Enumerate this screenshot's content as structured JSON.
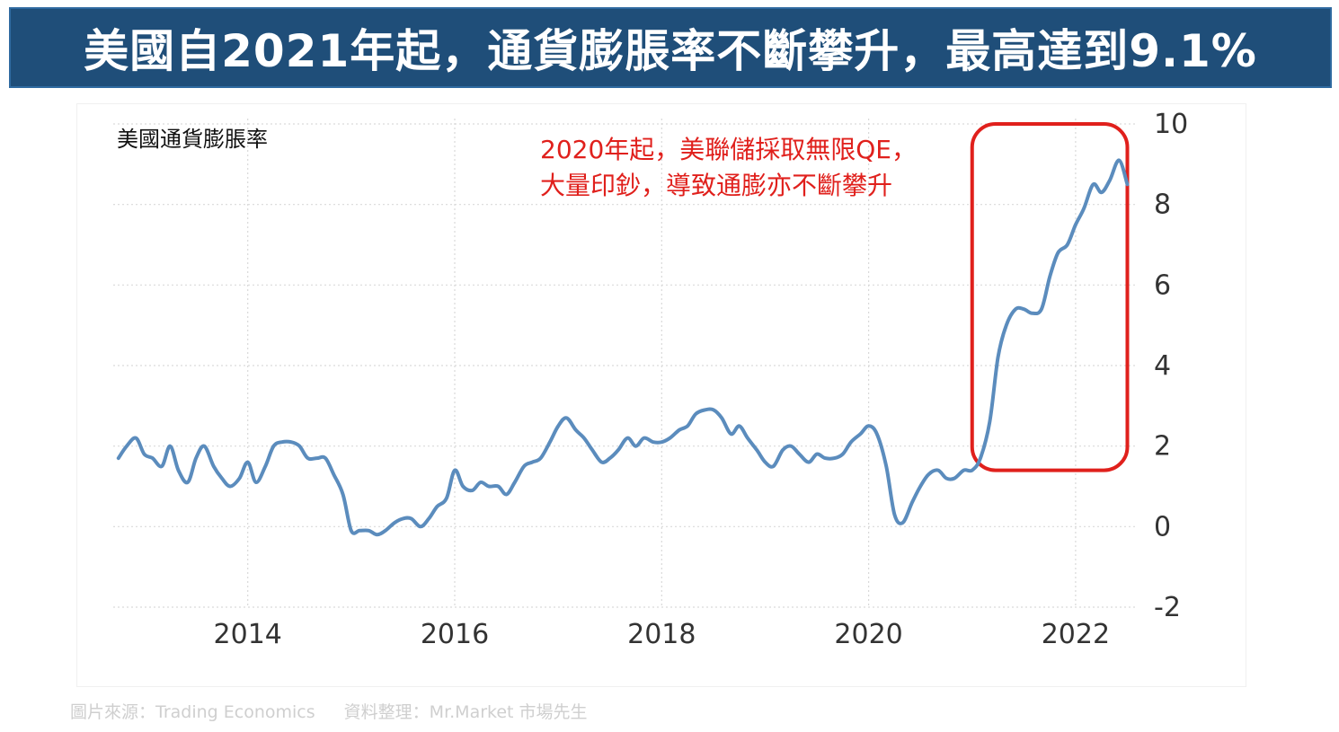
{
  "header": {
    "title": "美國自2021年起，通貨膨脹率不斷攀升，最高達到9.1%"
  },
  "footer": {
    "image_source": "圖片來源：Trading Economics",
    "data_compiled_by": "資料整理：Mr.Market 市場先生"
  },
  "colors": {
    "header_bg": "#1f4e79",
    "line": "#5b8cbd",
    "highlight": "#e0201c",
    "annotation_text": "#e0201c",
    "axis_text": "#333333"
  },
  "chart_data": {
    "type": "line",
    "title": "美國通貨膨脹率",
    "annotation": {
      "line1": "2020年起，美聯儲採取無限QE，",
      "line2": "大量印鈔，導致通膨亦不斷攀升"
    },
    "y_axis_side": "right",
    "ylim": [
      -2,
      10
    ],
    "yticks": [
      "10",
      "8",
      "6",
      "4",
      "2",
      "0",
      "-2"
    ],
    "yticks_values": [
      10,
      8,
      6,
      4,
      2,
      0,
      -2
    ],
    "xlim": [
      2012.7,
      2022.6
    ],
    "xticks": [
      "2014",
      "2016",
      "2018",
      "2020",
      "2022"
    ],
    "xticks_values": [
      2014,
      2016,
      2018,
      2020,
      2022
    ],
    "grid": true,
    "highlight_range": {
      "x": [
        2021.0,
        2022.5
      ],
      "y": [
        1.4,
        10
      ]
    },
    "series": [
      {
        "x": [
          2012.75,
          2012.83,
          2012.92,
          2013.0,
          2013.08,
          2013.17,
          2013.25,
          2013.33,
          2013.42,
          2013.5,
          2013.58,
          2013.67,
          2013.75,
          2013.83,
          2013.92,
          2014.0,
          2014.08,
          2014.17,
          2014.25,
          2014.33,
          2014.42,
          2014.5,
          2014.58,
          2014.67,
          2014.75,
          2014.83,
          2014.92,
          2015.0,
          2015.08,
          2015.17,
          2015.25,
          2015.33,
          2015.42,
          2015.5,
          2015.58,
          2015.67,
          2015.75,
          2015.83,
          2015.92,
          2016.0,
          2016.08,
          2016.17,
          2016.25,
          2016.33,
          2016.42,
          2016.5,
          2016.58,
          2016.67,
          2016.75,
          2016.83,
          2016.92,
          2017.0,
          2017.08,
          2017.17,
          2017.25,
          2017.33,
          2017.42,
          2017.5,
          2017.58,
          2017.67,
          2017.75,
          2017.83,
          2017.92,
          2018.0,
          2018.08,
          2018.17,
          2018.25,
          2018.33,
          2018.42,
          2018.5,
          2018.58,
          2018.67,
          2018.75,
          2018.83,
          2018.92,
          2019.0,
          2019.08,
          2019.17,
          2019.25,
          2019.33,
          2019.42,
          2019.5,
          2019.58,
          2019.67,
          2019.75,
          2019.83,
          2019.92,
          2020.0,
          2020.08,
          2020.17,
          2020.25,
          2020.33,
          2020.42,
          2020.5,
          2020.58,
          2020.67,
          2020.75,
          2020.83,
          2020.92,
          2021.0,
          2021.08,
          2021.17,
          2021.25,
          2021.33,
          2021.42,
          2021.5,
          2021.58,
          2021.67,
          2021.75,
          2021.83,
          2021.92,
          2022.0,
          2022.08,
          2022.17,
          2022.25,
          2022.33,
          2022.42,
          2022.5
        ],
        "values": [
          1.7,
          2.0,
          2.2,
          1.8,
          1.7,
          1.5,
          2.0,
          1.4,
          1.1,
          1.7,
          2.0,
          1.5,
          1.2,
          1.0,
          1.2,
          1.6,
          1.1,
          1.5,
          2.0,
          2.1,
          2.1,
          2.0,
          1.7,
          1.7,
          1.7,
          1.3,
          0.8,
          -0.1,
          -0.1,
          -0.1,
          -0.2,
          -0.1,
          0.1,
          0.2,
          0.2,
          0.0,
          0.2,
          0.5,
          0.7,
          1.4,
          1.0,
          0.9,
          1.1,
          1.0,
          1.0,
          0.8,
          1.1,
          1.5,
          1.6,
          1.7,
          2.1,
          2.5,
          2.7,
          2.4,
          2.2,
          1.9,
          1.6,
          1.7,
          1.9,
          2.2,
          2.0,
          2.2,
          2.1,
          2.1,
          2.2,
          2.4,
          2.5,
          2.8,
          2.9,
          2.9,
          2.7,
          2.3,
          2.5,
          2.2,
          1.9,
          1.6,
          1.5,
          1.9,
          2.0,
          1.8,
          1.6,
          1.8,
          1.7,
          1.7,
          1.8,
          2.1,
          2.3,
          2.5,
          2.3,
          1.5,
          0.3,
          0.1,
          0.6,
          1.0,
          1.3,
          1.4,
          1.2,
          1.2,
          1.4,
          1.4,
          1.7,
          2.6,
          4.2,
          5.0,
          5.4,
          5.4,
          5.3,
          5.4,
          6.2,
          6.8,
          7.0,
          7.5,
          7.9,
          8.5,
          8.3,
          8.6,
          9.1,
          8.5
        ]
      }
    ]
  }
}
